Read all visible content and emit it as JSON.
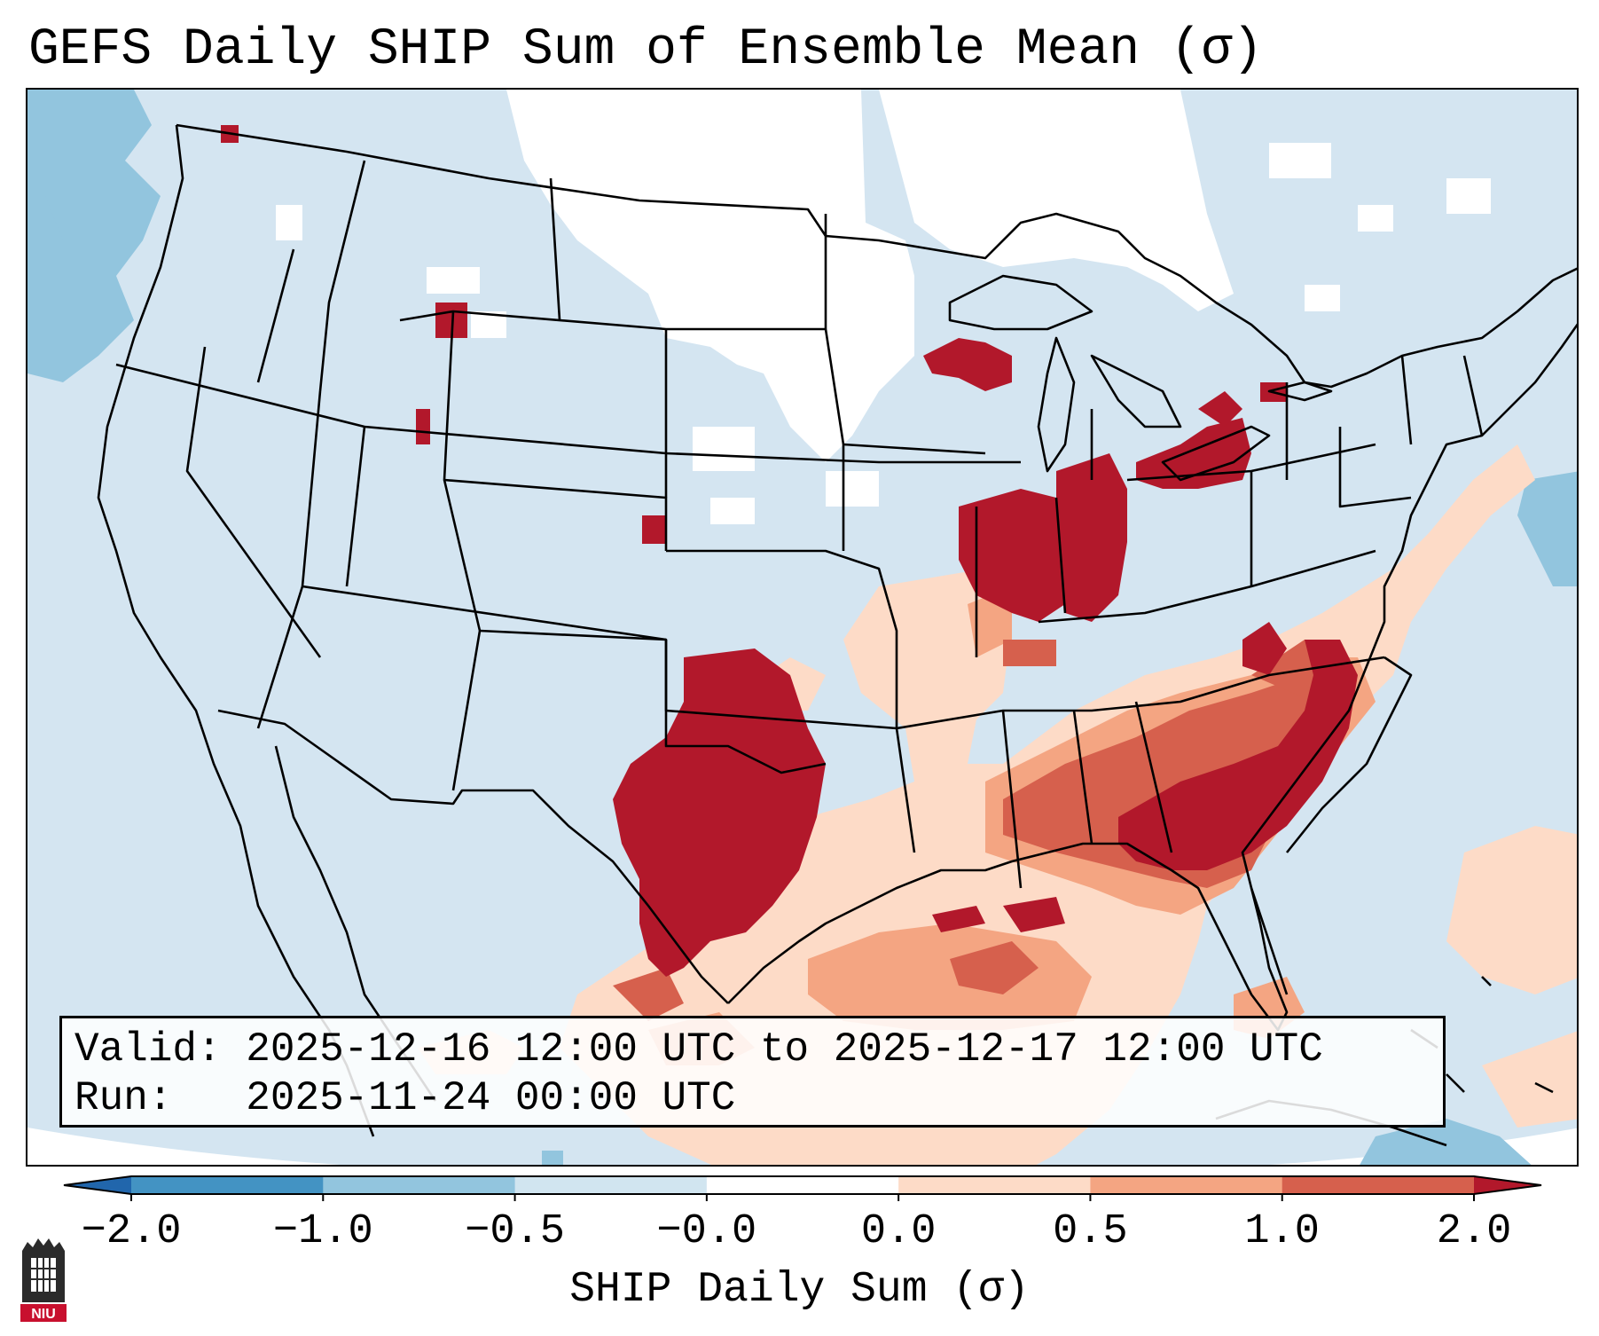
{
  "title": "GEFS Daily SHIP Sum of Ensemble Mean (σ)",
  "info_box": {
    "valid_label": "Valid:",
    "valid_value": "2025-12-16 12:00 UTC to 2025-12-17 12:00 UTC",
    "run_label": "Run:",
    "run_value": "2025-11-24 00:00 UTC"
  },
  "colorbar": {
    "label": "SHIP Daily Sum (σ)",
    "ticks": [
      "−2.0",
      "−1.0",
      "−0.5",
      "−0.0",
      "0.0",
      "0.5",
      "1.0",
      "2.0"
    ],
    "bins": [
      {
        "range": "< -2.0",
        "color": "#2166ac"
      },
      {
        "range": "-2.0 to -1.0",
        "color": "#4393c3"
      },
      {
        "range": "-1.0 to -0.5",
        "color": "#92c5de"
      },
      {
        "range": "-0.5 to -0.0",
        "color": "#d1e5f0"
      },
      {
        "range": "-0.0 to 0.0",
        "color": "#ffffff"
      },
      {
        "range": "0.0 to 0.5",
        "color": "#fddbc7"
      },
      {
        "range": "0.5 to 1.0",
        "color": "#f4a582"
      },
      {
        "range": "1.0 to 2.0",
        "color": "#d6604d"
      },
      {
        "range": "> 2.0",
        "color": "#b2182b"
      }
    ]
  },
  "logo": {
    "text": "NIU",
    "color": "#c8102e"
  }
}
